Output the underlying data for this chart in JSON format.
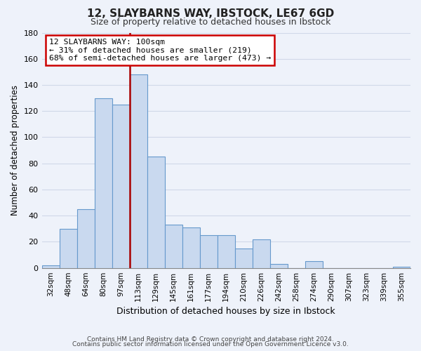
{
  "title": "12, SLAYBARNS WAY, IBSTOCK, LE67 6GD",
  "subtitle": "Size of property relative to detached houses in Ibstock",
  "xlabel": "Distribution of detached houses by size in Ibstock",
  "ylabel": "Number of detached properties",
  "categories": [
    "32sqm",
    "48sqm",
    "64sqm",
    "80sqm",
    "97sqm",
    "113sqm",
    "129sqm",
    "145sqm",
    "161sqm",
    "177sqm",
    "194sqm",
    "210sqm",
    "226sqm",
    "242sqm",
    "258sqm",
    "274sqm",
    "290sqm",
    "307sqm",
    "323sqm",
    "339sqm",
    "355sqm"
  ],
  "values": [
    2,
    30,
    45,
    130,
    125,
    148,
    85,
    33,
    31,
    25,
    25,
    15,
    22,
    3,
    0,
    5,
    0,
    0,
    0,
    0,
    1
  ],
  "bar_color": "#c9d9ef",
  "bar_edge_color": "#6699cc",
  "bar_edge_width": 0.8,
  "vline_color": "#aa0000",
  "vline_position": 5,
  "annotation_text": "12 SLAYBARNS WAY: 100sqm\n← 31% of detached houses are smaller (219)\n68% of semi-detached houses are larger (473) →",
  "annotation_box_color": "#ffffff",
  "annotation_box_edge": "#cc0000",
  "ylim": [
    0,
    180
  ],
  "yticks": [
    0,
    20,
    40,
    60,
    80,
    100,
    120,
    140,
    160,
    180
  ],
  "footer_line1": "Contains HM Land Registry data © Crown copyright and database right 2024.",
  "footer_line2": "Contains public sector information licensed under the Open Government Licence v3.0.",
  "background_color": "#eef2fa",
  "grid_color": "#d0d8e8"
}
